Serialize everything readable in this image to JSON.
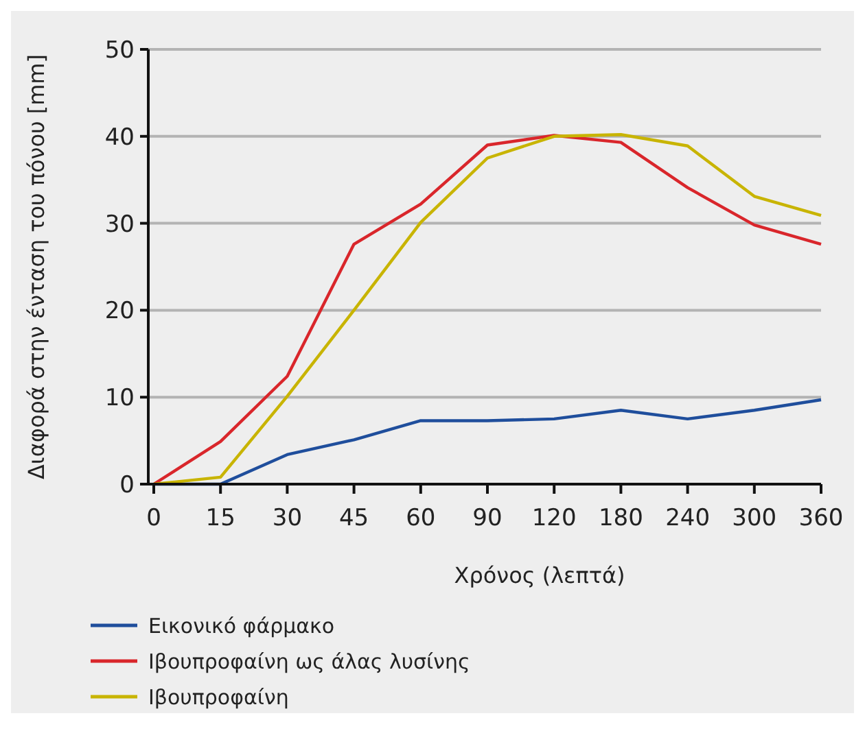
{
  "chart_data": {
    "type": "line",
    "xlabel": "Χρόνος (λεπτά)",
    "ylabel": "Διαφορά στην ένταση του πόνου [mm]",
    "categories": [
      "0",
      "15",
      "30",
      "45",
      "60",
      "90",
      "120",
      "180",
      "240",
      "300",
      "360"
    ],
    "series": [
      {
        "name": "Εικονικό φάρμακο",
        "color": "#1f4e9c",
        "values": [
          0,
          0,
          3.4,
          5.1,
          7.3,
          7.3,
          7.5,
          8.5,
          7.5,
          8.5,
          9.7
        ]
      },
      {
        "name": "Ιβουπροφαίνη ως άλας λυσίνης",
        "color": "#d9262b",
        "values": [
          0,
          4.9,
          12.4,
          27.6,
          32.2,
          39,
          40.1,
          39.3,
          34.1,
          29.8,
          27.6
        ]
      },
      {
        "name": "Ιβουπροφαίνη",
        "color": "#c8b400",
        "values": [
          0,
          0.8,
          10.1,
          20,
          30.1,
          37.5,
          40,
          40.2,
          38.9,
          33.1,
          30.9
        ]
      }
    ],
    "ylim": [
      0,
      50
    ],
    "yticks": [
      0,
      10,
      20,
      30,
      40,
      50
    ],
    "grid": "y",
    "legend": "bottom",
    "marker": "none",
    "line_style": "solid"
  }
}
